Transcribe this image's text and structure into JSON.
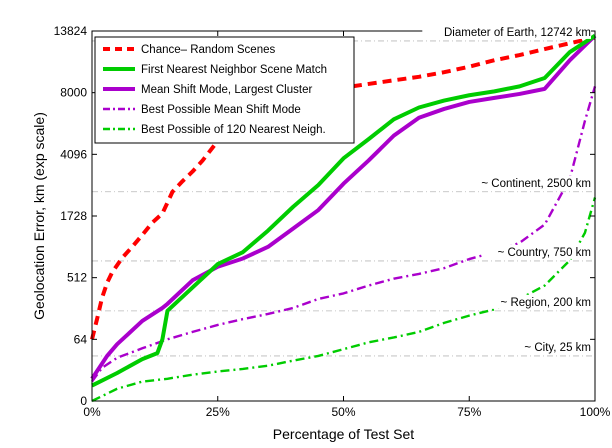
{
  "chart_data": {
    "type": "line",
    "title": "",
    "xlabel": "Percentage of Test Set",
    "ylabel": "Geolocation Error, km (exp scale)",
    "xlim": [
      0,
      100
    ],
    "y_scale": "exp",
    "x_ticks": [
      {
        "value": 0,
        "label": "0%"
      },
      {
        "value": 25,
        "label": "25%"
      },
      {
        "value": 50,
        "label": "50%"
      },
      {
        "value": 75,
        "label": "75%"
      },
      {
        "value": 100,
        "label": "100%"
      }
    ],
    "y_ticks": [
      {
        "value": 0,
        "label": "0"
      },
      {
        "value": 64,
        "label": "64"
      },
      {
        "value": 512,
        "label": "512"
      },
      {
        "value": 1728,
        "label": "1728"
      },
      {
        "value": 4096,
        "label": "4096"
      },
      {
        "value": 8000,
        "label": "8000"
      },
      {
        "value": 13824,
        "label": "13824"
      }
    ],
    "legend_position": "top-left",
    "reference_lines": [
      {
        "label": "Diameter of Earth, 12742 km",
        "y": 12742
      },
      {
        "label": "~ Continent, 2500 km",
        "y": 2500
      },
      {
        "label": "~ Country, 750 km",
        "y": 750
      },
      {
        "label": "~ Region, 200 km",
        "y": 200
      },
      {
        "label": "~ City, 25 km",
        "y": 25
      }
    ],
    "series": [
      {
        "name": "Chance– Random Scenes",
        "color": "#ff0000",
        "style": "dashed",
        "x": [
          0,
          1,
          2,
          3,
          4,
          6,
          8,
          10,
          12,
          14,
          16,
          18,
          20,
          22,
          25,
          28,
          30,
          35,
          40,
          45,
          50,
          55,
          60,
          65,
          70,
          75,
          80,
          85,
          90,
          95,
          100
        ],
        "y": [
          64,
          150,
          300,
          450,
          580,
          800,
          1000,
          1250,
          1550,
          1800,
          2500,
          2900,
          3300,
          3800,
          4800,
          5600,
          6300,
          7200,
          7600,
          8000,
          8400,
          8700,
          9000,
          9300,
          9700,
          10200,
          10800,
          11300,
          11900,
          12500,
          13100
        ]
      },
      {
        "name": "First Nearest Neighbor Scene Match",
        "color": "#00cc00",
        "style": "solid",
        "x": [
          0,
          5,
          10,
          13,
          14,
          15,
          20,
          25,
          30,
          35,
          40,
          45,
          50,
          55,
          60,
          65,
          70,
          75,
          80,
          85,
          90,
          95,
          100
        ],
        "y": [
          1,
          6,
          20,
          30,
          64,
          200,
          400,
          700,
          900,
          1350,
          2000,
          2750,
          3900,
          4900,
          6100,
          6900,
          7400,
          7800,
          8100,
          8500,
          9200,
          11600,
          13300
        ]
      },
      {
        "name": "Mean Shift Mode, Largest Cluster",
        "color": "#aa00cc",
        "style": "solid",
        "x": [
          0,
          3,
          5,
          10,
          14,
          15,
          20,
          25,
          30,
          35,
          40,
          45,
          50,
          55,
          60,
          65,
          70,
          75,
          80,
          85,
          90,
          95,
          100
        ],
        "y": [
          3,
          25,
          50,
          140,
          220,
          250,
          480,
          660,
          790,
          1000,
          1400,
          1900,
          2800,
          3800,
          5100,
          6200,
          6800,
          7300,
          7600,
          7900,
          8300,
          10800,
          13300
        ]
      },
      {
        "name": "Best Possible Mean Shift Mode",
        "color": "#aa00cc",
        "style": "dashdot",
        "x": [
          0,
          2,
          5,
          10,
          15,
          20,
          25,
          30,
          35,
          40,
          45,
          50,
          55,
          60,
          65,
          70,
          75,
          80,
          85,
          90,
          95,
          98,
          100
        ],
        "y": [
          2,
          10,
          22,
          40,
          64,
          90,
          120,
          150,
          180,
          220,
          290,
          340,
          420,
          500,
          560,
          640,
          780,
          900,
          1080,
          1500,
          3000,
          6000,
          8500
        ]
      },
      {
        "name": "Best Possible of 120 Nearest Neigh.",
        "color": "#00cc00",
        "style": "dashdot",
        "x": [
          0,
          5,
          10,
          15,
          20,
          25,
          30,
          35,
          40,
          45,
          50,
          55,
          60,
          65,
          70,
          75,
          80,
          85,
          90,
          95,
          98,
          100
        ],
        "y": [
          0,
          0.5,
          2,
          3,
          5,
          7,
          9,
          12,
          18,
          25,
          38,
          55,
          70,
          90,
          130,
          170,
          210,
          290,
          420,
          760,
          1300,
          2300
        ]
      }
    ]
  }
}
